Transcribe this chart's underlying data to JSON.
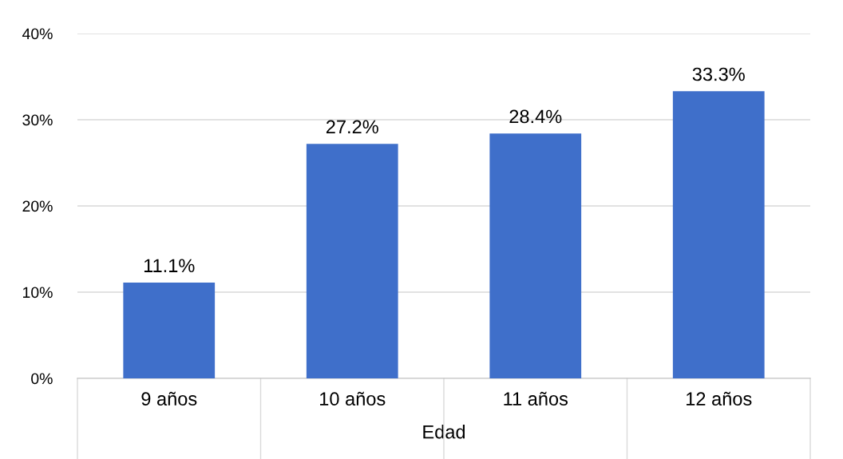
{
  "chart_data": {
    "type": "bar",
    "xlabel": "Edad",
    "categories": [
      "9 años",
      "10 años",
      "11 años",
      "12 años"
    ],
    "values": [
      11.1,
      27.2,
      28.4,
      33.3
    ],
    "color": "#3f6fca",
    "value_labels": [
      "11.1%",
      "27.2%",
      "28.4%",
      "33.3%"
    ],
    "ylim": [
      0,
      40
    ],
    "yticks": [
      {
        "value": 0,
        "label": "0%"
      },
      {
        "value": 10,
        "label": "10%"
      },
      {
        "value": 20,
        "label": "20%"
      },
      {
        "value": 30,
        "label": "30%"
      },
      {
        "value": 40,
        "label": "40%"
      }
    ],
    "grid": "y",
    "legend": false
  }
}
